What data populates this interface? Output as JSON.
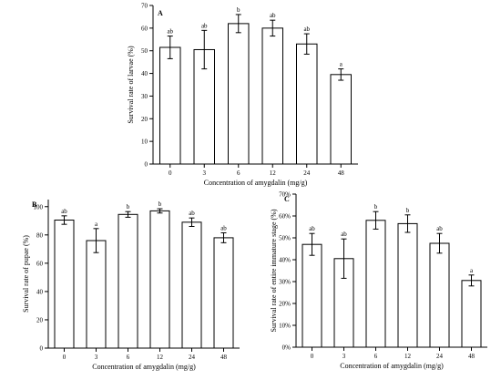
{
  "chart_data": [
    {
      "type": "bar",
      "panel_label": "A",
      "categories": [
        "0",
        "3",
        "6",
        "12",
        "24",
        "48"
      ],
      "values": [
        51.5,
        50.5,
        62,
        60,
        53,
        39.5
      ],
      "errors": [
        5,
        8.5,
        4,
        3.5,
        4.5,
        2.5
      ],
      "letters": [
        "ab",
        "ab",
        "b",
        "ab",
        "ab",
        "a"
      ],
      "xlabel": "Concentration of amygdalin (mg/g)",
      "ylabel": "Survival rate of larvae (%)",
      "ylim": [
        0,
        70
      ],
      "yticks": [
        0,
        10,
        20,
        30,
        40,
        50,
        60,
        70
      ]
    },
    {
      "type": "bar",
      "panel_label": "B",
      "categories": [
        "0",
        "3",
        "6",
        "12",
        "24",
        "48"
      ],
      "values": [
        90.5,
        76,
        94.5,
        97,
        89,
        78
      ],
      "errors": [
        3,
        8.5,
        2,
        1.5,
        3,
        3.5
      ],
      "letters": [
        "ab",
        "a",
        "b",
        "b",
        "ab",
        "ab"
      ],
      "xlabel": "Concentration of amygdalin (mg/g)",
      "ylabel": "Survival rate of pupae (%)",
      "ylim": [
        0,
        105
      ],
      "yticks": [
        0,
        20,
        40,
        60,
        80,
        100
      ]
    },
    {
      "type": "bar",
      "panel_label": "C",
      "categories": [
        "0",
        "3",
        "6",
        "12",
        "24",
        "48"
      ],
      "values": [
        47,
        40.5,
        58,
        56.5,
        47.5,
        30.5
      ],
      "errors": [
        5,
        9,
        4,
        4,
        4.5,
        2.5
      ],
      "letters": [
        "ab",
        "ab",
        "b",
        "b",
        "ab",
        "a"
      ],
      "xlabel": "Concentration of amygdalin (mg/g)",
      "ylabel": "Survival rate of entire immature stage (%)",
      "ylim": [
        0,
        70
      ],
      "yticks": [
        0,
        10,
        20,
        30,
        40,
        50,
        60,
        70
      ],
      "ytick_format": "percent"
    }
  ]
}
